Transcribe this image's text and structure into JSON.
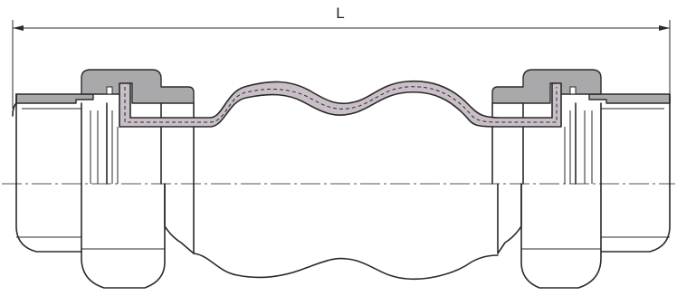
{
  "dimension": {
    "label": "L"
  },
  "colors": {
    "rubber_body": "#c9bfc8",
    "metal_union": "#a9a9ab",
    "outline": "#2a2a2a",
    "background": "#ffffff"
  }
}
